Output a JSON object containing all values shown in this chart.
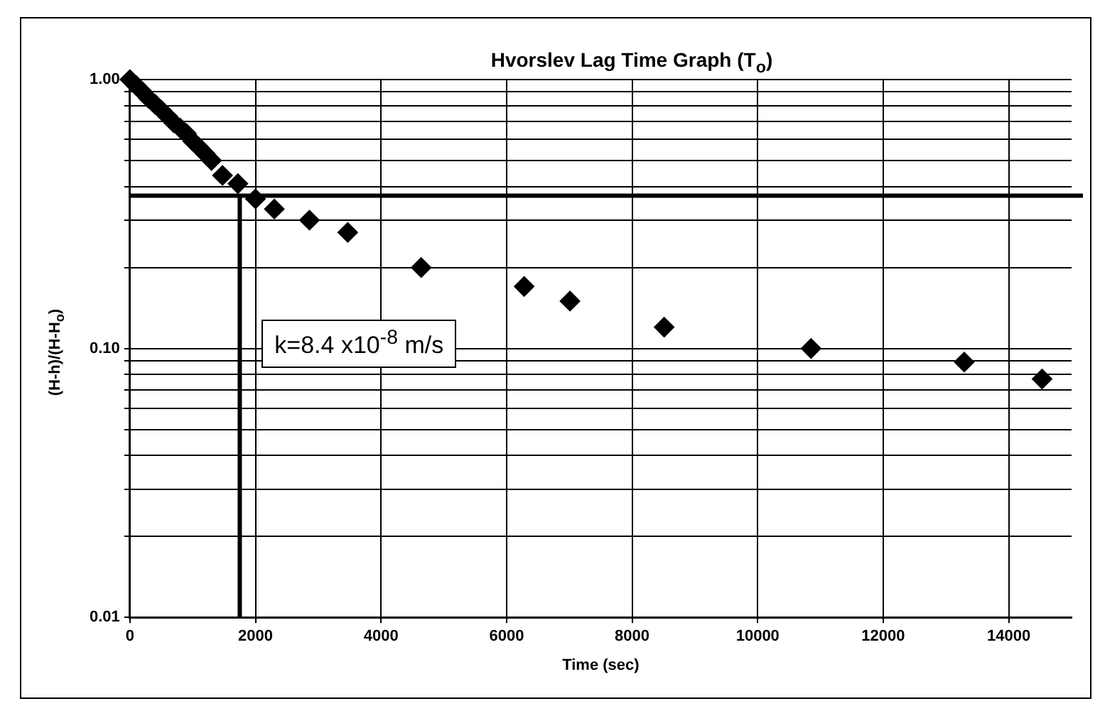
{
  "chart_data": {
    "type": "scatter",
    "title": "Hvorslev Lag Time Graph (T$_{o}$)",
    "xlabel": "Time (sec)",
    "ylabel": "(H-h)/(H-H$_{o}$)",
    "annotations": [
      "k=8.4 x10$^{-8}$ m/s"
    ],
    "series": [
      {
        "color": "#000000",
        "x": [
          0,
          100,
          200,
          300,
          400,
          500,
          600,
          700,
          800,
          900,
          1000,
          1100,
          1200,
          1300,
          1475,
          1720,
          2000,
          2300,
          2860,
          3470,
          4640,
          6280,
          7010,
          8510,
          10850,
          13290,
          14530
        ],
        "values": [
          1.0,
          0.95,
          0.9,
          0.85,
          0.81,
          0.77,
          0.73,
          0.69,
          0.66,
          0.63,
          0.59,
          0.56,
          0.53,
          0.5,
          0.44,
          0.41,
          0.36,
          0.33,
          0.3,
          0.27,
          0.2,
          0.17,
          0.15,
          0.12,
          0.1,
          0.089,
          0.077
        ]
      }
    ],
    "xlim": [
      0,
      15000
    ],
    "xticks": [
      0,
      2000,
      4000,
      6000,
      8000,
      10000,
      12000,
      14000
    ],
    "ylim": [
      0.01,
      1
    ],
    "yticks": [
      {
        "value": 0.01,
        "label": "0.01"
      },
      {
        "value": 0.02,
        "label": null
      },
      {
        "value": 0.03,
        "label": null
      },
      {
        "value": 0.04,
        "label": null
      },
      {
        "value": 0.05,
        "label": null
      },
      {
        "value": 0.06,
        "label": null
      },
      {
        "value": 0.07,
        "label": null
      },
      {
        "value": 0.08,
        "label": null
      },
      {
        "value": 0.09,
        "label": null
      },
      {
        "value": 0.1,
        "label": "0.10"
      },
      {
        "value": 0.2,
        "label": null
      },
      {
        "value": 0.3,
        "label": null
      },
      {
        "value": 0.4,
        "label": null
      },
      {
        "value": 0.5,
        "label": null
      },
      {
        "value": 0.6,
        "label": null
      },
      {
        "value": 0.7,
        "label": null
      },
      {
        "value": 0.8,
        "label": null
      },
      {
        "value": 0.9,
        "label": null
      },
      {
        "value": 1,
        "label": "1.00"
      }
    ],
    "log": "y",
    "grid": true,
    "legend": false,
    "marker": "diamond",
    "ref_lines": [
      {
        "axis": "y",
        "value": 0.37,
        "color": "#000000"
      },
      {
        "axis": "x",
        "value": 1750,
        "color": "#000000"
      }
    ]
  }
}
